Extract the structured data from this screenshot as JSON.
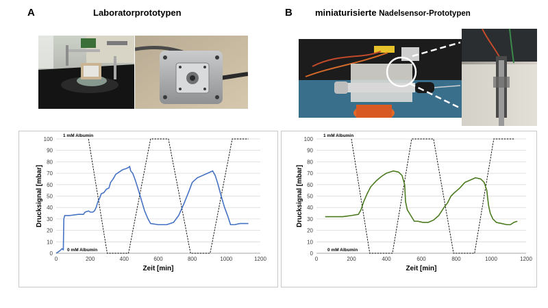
{
  "panel_a": {
    "letter": "A",
    "title": "Laboratorprototypen"
  },
  "panel_b": {
    "letter": "B",
    "title_main": "miniaturisierte",
    "title_small": "Nadelsensor-Prototypen"
  },
  "colors": {
    "series_a": "#4472c4",
    "series_b": "#4a7a1e",
    "concentration": "#000000"
  },
  "chart_data": [
    {
      "type": "line",
      "xlabel": "Zeit [min]",
      "ylabel": "Drucksignal [mbar]",
      "xlim": [
        0,
        1200
      ],
      "ylim": [
        0,
        100
      ],
      "xticks": [
        0,
        200,
        400,
        600,
        800,
        1000,
        1200
      ],
      "yticks": [
        0,
        10,
        20,
        30,
        40,
        50,
        60,
        70,
        80,
        90,
        100
      ],
      "annotations": [
        "1 mM Albumin",
        "0 mM Albumin"
      ],
      "series": [
        {
          "values": [
            [
              0,
              0
            ],
            [
              20,
              2
            ],
            [
              35,
              4
            ],
            [
              42,
              3
            ],
            [
              45,
              30
            ],
            [
              50,
              33
            ],
            [
              80,
              33
            ],
            [
              130,
              34
            ],
            [
              150,
              34
            ],
            [
              160,
              34
            ],
            [
              170,
              36
            ],
            [
              190,
              37
            ],
            [
              200,
              36
            ],
            [
              215,
              36
            ],
            [
              225,
              37
            ],
            [
              235,
              40
            ],
            [
              245,
              45
            ],
            [
              255,
              48
            ],
            [
              265,
              52
            ],
            [
              280,
              53
            ],
            [
              295,
              56
            ],
            [
              310,
              57
            ],
            [
              320,
              62
            ],
            [
              335,
              65
            ],
            [
              350,
              69
            ],
            [
              370,
              71
            ],
            [
              390,
              73
            ],
            [
              410,
              74
            ],
            [
              425,
              75
            ],
            [
              432,
              76
            ],
            [
              438,
              72
            ],
            [
              450,
              70
            ],
            [
              465,
              64
            ],
            [
              480,
              57
            ],
            [
              500,
              47
            ],
            [
              520,
              37
            ],
            [
              540,
              30
            ],
            [
              555,
              26
            ],
            [
              600,
              25
            ],
            [
              650,
              25
            ],
            [
              690,
              27
            ],
            [
              720,
              33
            ],
            [
              750,
              43
            ],
            [
              780,
              54
            ],
            [
              800,
              62
            ],
            [
              830,
              66
            ],
            [
              860,
              68
            ],
            [
              890,
              70
            ],
            [
              920,
              72
            ],
            [
              935,
              68
            ],
            [
              950,
              61
            ],
            [
              970,
              50
            ],
            [
              990,
              40
            ],
            [
              1010,
              32
            ],
            [
              1025,
              25
            ],
            [
              1050,
              25
            ],
            [
              1080,
              26
            ],
            [
              1130,
              26
            ]
          ]
        },
        {
          "type": "step",
          "values": [
            [
              190,
              100
            ],
            [
              300,
              0
            ],
            [
              425,
              0
            ],
            [
              555,
              100
            ],
            [
              660,
              100
            ],
            [
              790,
              0
            ],
            [
              905,
              0
            ],
            [
              1035,
              100
            ],
            [
              1130,
              100
            ]
          ]
        }
      ]
    },
    {
      "type": "line",
      "xlabel": "Zeit [min]",
      "ylabel": "Drucksignal [mbar]",
      "xlim": [
        0,
        1200
      ],
      "ylim": [
        0,
        100
      ],
      "xticks": [
        0,
        200,
        400,
        600,
        800,
        1000,
        1200
      ],
      "yticks": [
        0,
        10,
        20,
        30,
        40,
        50,
        60,
        70,
        80,
        90,
        100
      ],
      "annotations": [
        "1 mM Albumin",
        "0 mM Albumin"
      ],
      "series": [
        {
          "values": [
            [
              50,
              32
            ],
            [
              100,
              32
            ],
            [
              150,
              32
            ],
            [
              200,
              33
            ],
            [
              240,
              34
            ],
            [
              255,
              38
            ],
            [
              270,
              45
            ],
            [
              290,
              52
            ],
            [
              310,
              58
            ],
            [
              340,
              63
            ],
            [
              370,
              67
            ],
            [
              400,
              70
            ],
            [
              440,
              72
            ],
            [
              470,
              71
            ],
            [
              490,
              68
            ],
            [
              505,
              60
            ],
            [
              510,
              45
            ],
            [
              520,
              38
            ],
            [
              540,
              33
            ],
            [
              560,
              28
            ],
            [
              580,
              28
            ],
            [
              610,
              27
            ],
            [
              640,
              27
            ],
            [
              670,
              29
            ],
            [
              700,
              33
            ],
            [
              730,
              40
            ],
            [
              750,
              44
            ],
            [
              770,
              50
            ],
            [
              790,
              53
            ],
            [
              820,
              57
            ],
            [
              850,
              62
            ],
            [
              880,
              64
            ],
            [
              910,
              66
            ],
            [
              940,
              65
            ],
            [
              960,
              62
            ],
            [
              975,
              55
            ],
            [
              985,
              42
            ],
            [
              995,
              35
            ],
            [
              1010,
              30
            ],
            [
              1030,
              27
            ],
            [
              1060,
              26
            ],
            [
              1090,
              25
            ],
            [
              1110,
              25
            ],
            [
              1130,
              27
            ],
            [
              1150,
              28
            ]
          ]
        },
        {
          "type": "step",
          "values": [
            [
              200,
              100
            ],
            [
              305,
              0
            ],
            [
              435,
              0
            ],
            [
              545,
              100
            ],
            [
              670,
              100
            ],
            [
              785,
              0
            ],
            [
              905,
              0
            ],
            [
              1015,
              100
            ],
            [
              1130,
              100
            ]
          ]
        }
      ]
    }
  ]
}
